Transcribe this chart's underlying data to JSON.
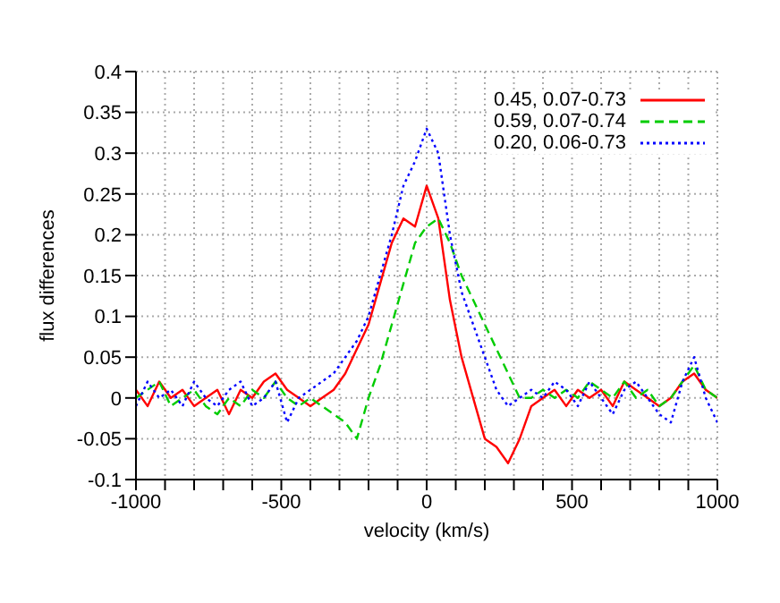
{
  "chart_data": {
    "type": "line",
    "xlabel": "velocity (km/s)",
    "ylabel": "flux differences",
    "x": [
      -1000,
      -960,
      -920,
      -880,
      -840,
      -800,
      -760,
      -720,
      -680,
      -640,
      -600,
      -560,
      -520,
      -480,
      -440,
      -400,
      -360,
      -320,
      -280,
      -240,
      -200,
      -160,
      -120,
      -80,
      -40,
      0,
      40,
      80,
      120,
      160,
      200,
      240,
      280,
      320,
      360,
      400,
      440,
      480,
      520,
      560,
      600,
      640,
      680,
      720,
      760,
      800,
      840,
      880,
      920,
      960,
      1000
    ],
    "series": [
      {
        "name": "0.45, 0.07-0.73",
        "color": "#ff0000",
        "line_style": "solid",
        "values": [
          0.01,
          -0.01,
          0.02,
          0.0,
          0.01,
          -0.01,
          0.0,
          0.01,
          -0.02,
          0.01,
          0.0,
          0.02,
          0.03,
          0.01,
          0.0,
          -0.01,
          0.0,
          0.01,
          0.03,
          0.06,
          0.09,
          0.14,
          0.19,
          0.22,
          0.21,
          0.26,
          0.22,
          0.12,
          0.05,
          0.0,
          -0.05,
          -0.06,
          -0.08,
          -0.05,
          -0.01,
          0.0,
          0.01,
          -0.01,
          0.01,
          0.0,
          0.01,
          -0.01,
          0.02,
          0.01,
          0.0,
          -0.01,
          0.0,
          0.02,
          0.03,
          0.01,
          0.0
        ]
      },
      {
        "name": "0.59, 0.07-0.74",
        "color": "#00cc00",
        "line_style": "dashed",
        "values": [
          0.0,
          0.01,
          0.02,
          -0.01,
          0.0,
          0.01,
          -0.01,
          -0.02,
          0.0,
          -0.01,
          0.01,
          0.0,
          0.02,
          0.0,
          -0.01,
          0.0,
          -0.01,
          -0.02,
          -0.03,
          -0.05,
          0.0,
          0.04,
          0.09,
          0.14,
          0.19,
          0.21,
          0.22,
          0.19,
          0.15,
          0.12,
          0.09,
          0.06,
          0.03,
          0.0,
          0.0,
          0.01,
          0.0,
          0.01,
          0.0,
          0.02,
          0.01,
          0.0,
          0.02,
          0.0,
          0.01,
          -0.01,
          0.0,
          0.02,
          0.04,
          0.01,
          0.0
        ]
      },
      {
        "name": "0.20, 0.06-0.73",
        "color": "#0000ff",
        "line_style": "dotted",
        "values": [
          -0.01,
          0.02,
          0.0,
          0.01,
          -0.01,
          0.02,
          0.0,
          -0.01,
          0.01,
          0.02,
          -0.01,
          0.0,
          0.02,
          -0.03,
          0.0,
          0.01,
          0.02,
          0.03,
          0.05,
          0.07,
          0.1,
          0.15,
          0.2,
          0.26,
          0.29,
          0.33,
          0.3,
          0.2,
          0.13,
          0.09,
          0.05,
          0.01,
          -0.01,
          0.0,
          0.01,
          0.0,
          0.02,
          0.01,
          -0.01,
          0.02,
          0.0,
          -0.02,
          0.01,
          0.02,
          0.0,
          -0.02,
          -0.03,
          0.02,
          0.05,
          0.0,
          -0.03
        ]
      }
    ],
    "xlim": [
      -1000,
      1000
    ],
    "xticks": [
      -1000,
      {
        "value": -900,
        "label": null
      },
      {
        "value": -800,
        "label": null
      },
      {
        "value": -700,
        "label": null
      },
      {
        "value": -600,
        "label": null
      },
      -500,
      {
        "value": -400,
        "label": null
      },
      {
        "value": -300,
        "label": null
      },
      {
        "value": -200,
        "label": null
      },
      {
        "value": -100,
        "label": null
      },
      0,
      {
        "value": 100,
        "label": null
      },
      {
        "value": 200,
        "label": null
      },
      {
        "value": 300,
        "label": null
      },
      {
        "value": 400,
        "label": null
      },
      500,
      {
        "value": 600,
        "label": null
      },
      {
        "value": 700,
        "label": null
      },
      {
        "value": 800,
        "label": null
      },
      {
        "value": 900,
        "label": null
      },
      1000
    ],
    "ylim": [
      -0.1,
      0.4
    ],
    "yticks": [
      -0.1,
      -0.05,
      0,
      0.05,
      0.1,
      0.15,
      0.2,
      0.25,
      0.3,
      0.35,
      0.4
    ],
    "grid": true,
    "legend": "top right"
  }
}
